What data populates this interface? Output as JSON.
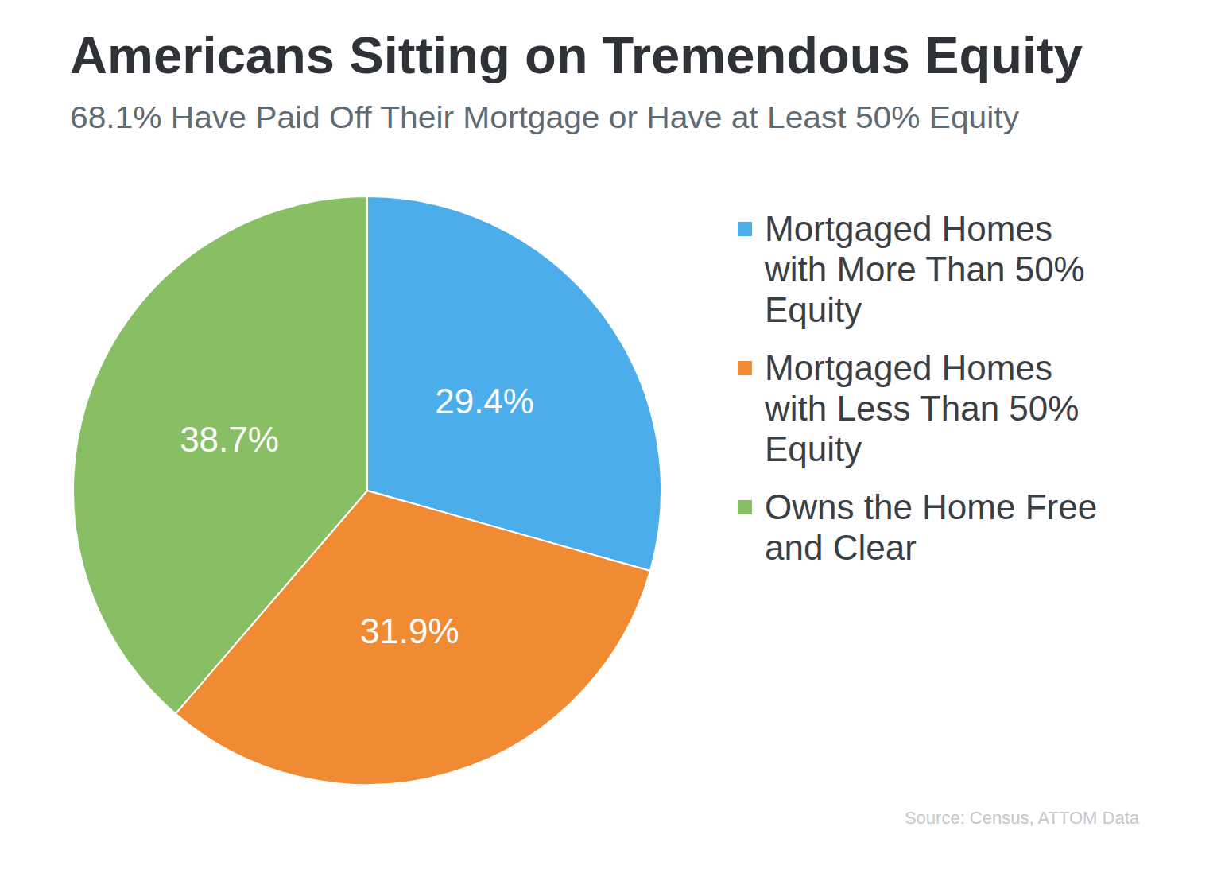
{
  "chart_data": {
    "type": "pie",
    "title": "Americans Sitting on Tremendous Equity",
    "subtitle": "68.1% Have Paid Off Their Mortgage or Have at Least 50% Equity",
    "categories": [
      "Mortgaged Homes with More Than 50% Equity",
      "Mortgaged Homes with Less Than 50% Equity",
      "Owns the Home Free and Clear"
    ],
    "values": [
      29.4,
      31.9,
      38.7
    ],
    "value_labels": [
      "29.4%",
      "31.9%",
      "38.7%"
    ],
    "colors": [
      "#4badea",
      "#f08a33",
      "#88bf65"
    ],
    "data_labels": true,
    "legend": "right",
    "source": "Source: Census, ATTOM Data"
  }
}
